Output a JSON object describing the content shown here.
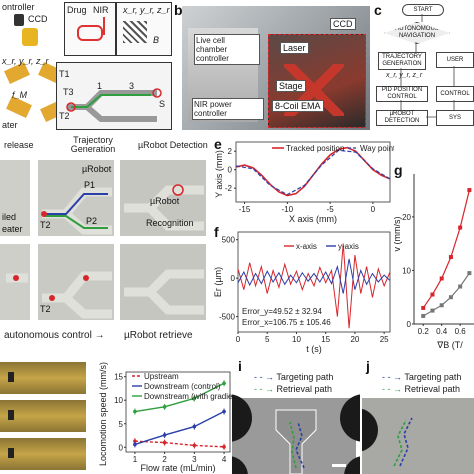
{
  "labels": {
    "b": "b",
    "c": "c",
    "e": "e",
    "f": "f",
    "g": "g",
    "i": "i",
    "j": "j"
  },
  "panel_a": {
    "controller": "ontroller",
    "ccd": "CCD",
    "drug": "Drug",
    "nir": "NIR",
    "coords": "x_r, y_r, z_r",
    "coords2": "x_r, y_r, z_r",
    "field": "B",
    "coil": "f_M",
    "t1": "T1",
    "t2": "T2",
    "t3": "T3",
    "p1": "1",
    "p3": "3",
    "s": "S",
    "heater": "ater"
  },
  "panel_b": {
    "live_cell": "Live cell chamber controller",
    "nir_power": "NIR power controller",
    "ccd": "CCD",
    "laser": "Laser",
    "stage": "Stage",
    "ema": "8-Coil EMA"
  },
  "panel_c": {
    "start": "START",
    "auto_nav": "AUTONOMOUS NAVIGATION",
    "trajectory": "TRAJECTORY GENERATION",
    "user": "USER",
    "coords": "x_r, y_r, z_r",
    "pid": "PID POSITION CONTROL",
    "control": "CONTROL",
    "detection": "µROBOT DETECTION",
    "system": "SYS"
  },
  "panel_d": {
    "release": "release",
    "traj_gen": "Trajectory Generation",
    "detect": "µRobot Detection",
    "urobot": "µRobot",
    "p1": "P1",
    "p2": "P2",
    "t2": "T2",
    "t2b": "T2",
    "recog1": "µRobot",
    "recog2": "Recognition",
    "heater1": "iled",
    "heater2": "eater",
    "auto_ctrl": "autonomous control →",
    "retrieve": "µRobot retrieve"
  },
  "chart_e": {
    "ylabel": "Y axis (mm)",
    "xlabel": "X axis (mm)",
    "legend_tracked": "Tracked position",
    "legend_way": "Way points",
    "x_ticks": [
      "-15",
      "-10",
      "-5",
      "0"
    ],
    "y_ticks": [
      "2",
      "0",
      "-2"
    ]
  },
  "chart_f": {
    "ylabel": "Er (µm)",
    "xlabel": "t (s)",
    "legend_x": "x-axis",
    "legend_y": "y-axis",
    "err_y": "Error_y=49.52 ± 32.94",
    "err_x": "Error_x=106.75 ± 105.46",
    "x_ticks": [
      "0",
      "5",
      "10",
      "15",
      "20",
      "25"
    ],
    "y_ticks": [
      "500",
      "0",
      "-500"
    ]
  },
  "chart_g": {
    "ylabel": "v (mm/s)",
    "xlabel": "∇B (T/",
    "x_ticks": [
      "0.2",
      "0.4",
      "0.6"
    ],
    "y_ticks": [
      "0",
      "10",
      "20"
    ]
  },
  "chart_h": {
    "ylabel": "Locomotion speed (mm/s)",
    "xlabel": "Flow rate (mL/min)",
    "legend_up": "Upstream",
    "legend_down": "Downstream (control)",
    "legend_grad": "Downstream (with gradient)",
    "x_ticks": [
      "1",
      "2",
      "3",
      "4"
    ],
    "y_ticks": [
      "0",
      "5",
      "10",
      "15"
    ]
  },
  "panel_i": {
    "targeting": "Targeting path",
    "retrieval": "Retrieval path"
  },
  "panel_j": {
    "targeting": "Targeting path",
    "retrieval": "Retrieval path"
  },
  "colors": {
    "red": "#d7262b",
    "blue": "#2b3fa8",
    "green": "#2f9e3f",
    "grey": "#777777"
  },
  "chart_data": [
    {
      "type": "line",
      "panel": "e",
      "xlabel": "X axis (mm)",
      "ylabel": "Y axis (mm)",
      "xlim": [
        -16,
        2
      ],
      "ylim": [
        -3.5,
        3
      ],
      "series": [
        {
          "name": "Tracked position",
          "x": [
            -16,
            -15,
            -14,
            -13,
            -12,
            -11,
            -10,
            -9,
            -8,
            -7,
            -6,
            -5,
            -4,
            -3,
            -2,
            -1,
            0,
            1,
            2
          ],
          "y": [
            0.3,
            0.5,
            0.2,
            -0.6,
            -1.6,
            -2.4,
            -2.8,
            -2.6,
            -1.8,
            -0.6,
            0.6,
            1.6,
            2.2,
            2.4,
            2.0,
            1.0,
            0.0,
            -0.6,
            -1.0
          ]
        },
        {
          "name": "Way points",
          "x": [
            -16,
            -14,
            -12,
            -10,
            -8,
            -6,
            -4,
            -2,
            0,
            2
          ],
          "y": [
            0.4,
            0.1,
            -1.7,
            -2.7,
            -1.7,
            0.5,
            2.1,
            1.9,
            0.1,
            -1.0
          ]
        }
      ]
    },
    {
      "type": "line",
      "panel": "f",
      "xlabel": "t (s)",
      "ylabel": "Er (µm)",
      "xlim": [
        0,
        26
      ],
      "ylim": [
        -700,
        600
      ],
      "series": [
        {
          "name": "x-axis",
          "x": [
            0,
            1,
            2,
            3,
            4,
            5,
            6,
            7,
            8,
            9,
            10,
            11,
            12,
            13,
            14,
            15,
            16,
            17,
            18,
            19,
            20,
            21,
            22,
            23,
            24,
            25,
            26
          ],
          "y": [
            120,
            -150,
            200,
            -100,
            150,
            -200,
            100,
            -120,
            180,
            -80,
            90,
            -150,
            60,
            -100,
            140,
            -60,
            100,
            -500,
            450,
            -650,
            300,
            -200,
            150,
            -250,
            120,
            -100,
            80
          ]
        },
        {
          "name": "y-axis",
          "x": [
            0,
            1,
            2,
            3,
            4,
            5,
            6,
            7,
            8,
            9,
            10,
            11,
            12,
            13,
            14,
            15,
            16,
            17,
            18,
            19,
            20,
            21,
            22,
            23,
            24,
            25,
            26
          ],
          "y": [
            -60,
            80,
            -90,
            60,
            -70,
            90,
            -50,
            70,
            -80,
            40,
            -60,
            70,
            -40,
            60,
            -50,
            80,
            -70,
            150,
            -200,
            250,
            -150,
            100,
            -80,
            60,
            -50,
            40,
            -30
          ]
        }
      ]
    },
    {
      "type": "line",
      "panel": "g",
      "xlabel": "∇B (T/",
      "ylabel": "v (mm/s)",
      "xlim": [
        0.1,
        0.75
      ],
      "ylim": [
        0,
        28
      ],
      "series": [
        {
          "x": [
            0.2,
            0.3,
            0.4,
            0.5,
            0.6,
            0.7
          ],
          "y": [
            3,
            5.5,
            8.5,
            12.5,
            18,
            25
          ]
        },
        {
          "x": [
            0.2,
            0.3,
            0.4,
            0.5,
            0.6,
            0.7
          ],
          "y": [
            1.5,
            2.5,
            3.5,
            5,
            7,
            9.5
          ]
        }
      ]
    },
    {
      "type": "line",
      "panel": "h",
      "xlabel": "Flow rate (mL/min)",
      "ylabel": "Locomotion speed (mm/s)",
      "xlim": [
        0.7,
        4.2
      ],
      "ylim": [
        -1,
        16
      ],
      "categories": [
        1,
        2,
        3,
        4
      ],
      "series": [
        {
          "name": "Upstream",
          "values": [
            1.3,
            1.0,
            0.4,
            0.1
          ]
        },
        {
          "name": "Downstream (control)",
          "values": [
            0.6,
            2.6,
            4.4,
            7.6
          ]
        },
        {
          "name": "Downstream (with gradient)",
          "values": [
            7.6,
            8.6,
            10.4,
            13.6
          ]
        }
      ]
    }
  ]
}
